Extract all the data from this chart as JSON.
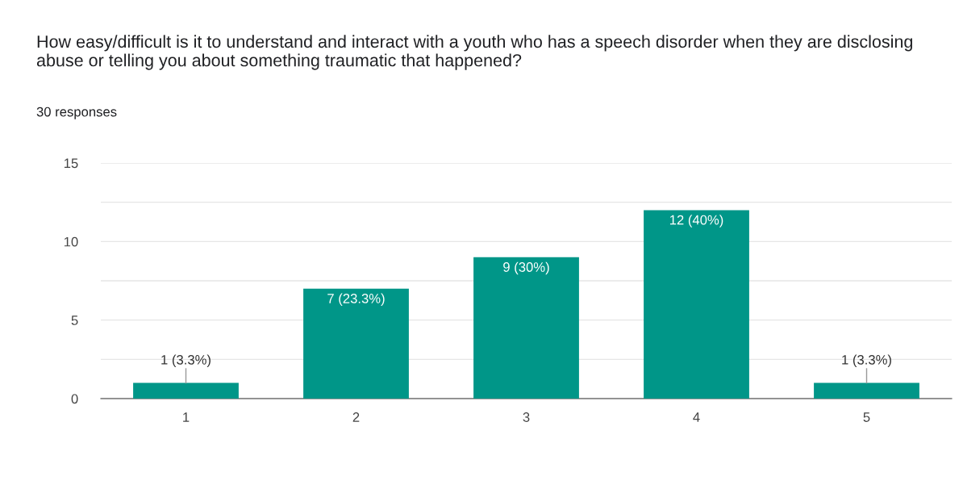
{
  "chart_data": {
    "type": "bar",
    "title": "How easy/difficult is it to understand and interact with a youth who has a speech disorder when they are disclosing abuse or telling you about something traumatic that happened?",
    "subtitle": "30 responses",
    "categories": [
      "1",
      "2",
      "3",
      "4",
      "5"
    ],
    "values": [
      1,
      7,
      9,
      12,
      1
    ],
    "value_labels": [
      "1 (3.3%)",
      "7 (23.3%)",
      "9 (30%)",
      "12 (40%)",
      "1 (3.3%)"
    ],
    "color": "#009688",
    "ylim": [
      0,
      15
    ],
    "yticks": [
      0,
      {
        "value": 2.5,
        "label": null
      },
      5,
      {
        "value": 7.5,
        "label": null
      },
      10,
      {
        "value": 12.5,
        "label": null
      },
      15
    ],
    "grid": "y",
    "legend": false
  }
}
